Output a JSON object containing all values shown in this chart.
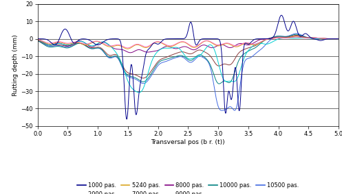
{
  "title": "",
  "xlabel": "Transversal pos (b r. (t))",
  "ylabel": "Rutting depth (mm)",
  "xlim": [
    0,
    5
  ],
  "ylim": [
    -50,
    20
  ],
  "yticks": [
    -50,
    -40,
    -30,
    -20,
    -10,
    0,
    10,
    20
  ],
  "xticks": [
    0,
    0.5,
    1,
    1.5,
    2,
    2.5,
    3,
    3.5,
    4,
    4.5,
    5
  ],
  "series": {
    "1000 pas.": {
      "color": "#00008B",
      "lw": 0.7
    },
    "2000 pas.": {
      "color": "#FF69B4",
      "lw": 0.7
    },
    "5240 pas.": {
      "color": "#DAA520",
      "lw": 0.7
    },
    "7000 pas.": {
      "color": "#00CED1",
      "lw": 0.7
    },
    "8000 pas.": {
      "color": "#800080",
      "lw": 0.7
    },
    "9000 pas.": {
      "color": "#8B3A3A",
      "lw": 0.7
    },
    "10000 pas.": {
      "color": "#008080",
      "lw": 0.7
    },
    "10500 pas.": {
      "color": "#4169E1",
      "lw": 0.7
    }
  },
  "background_color": "#ffffff",
  "grid_color": "#000000"
}
